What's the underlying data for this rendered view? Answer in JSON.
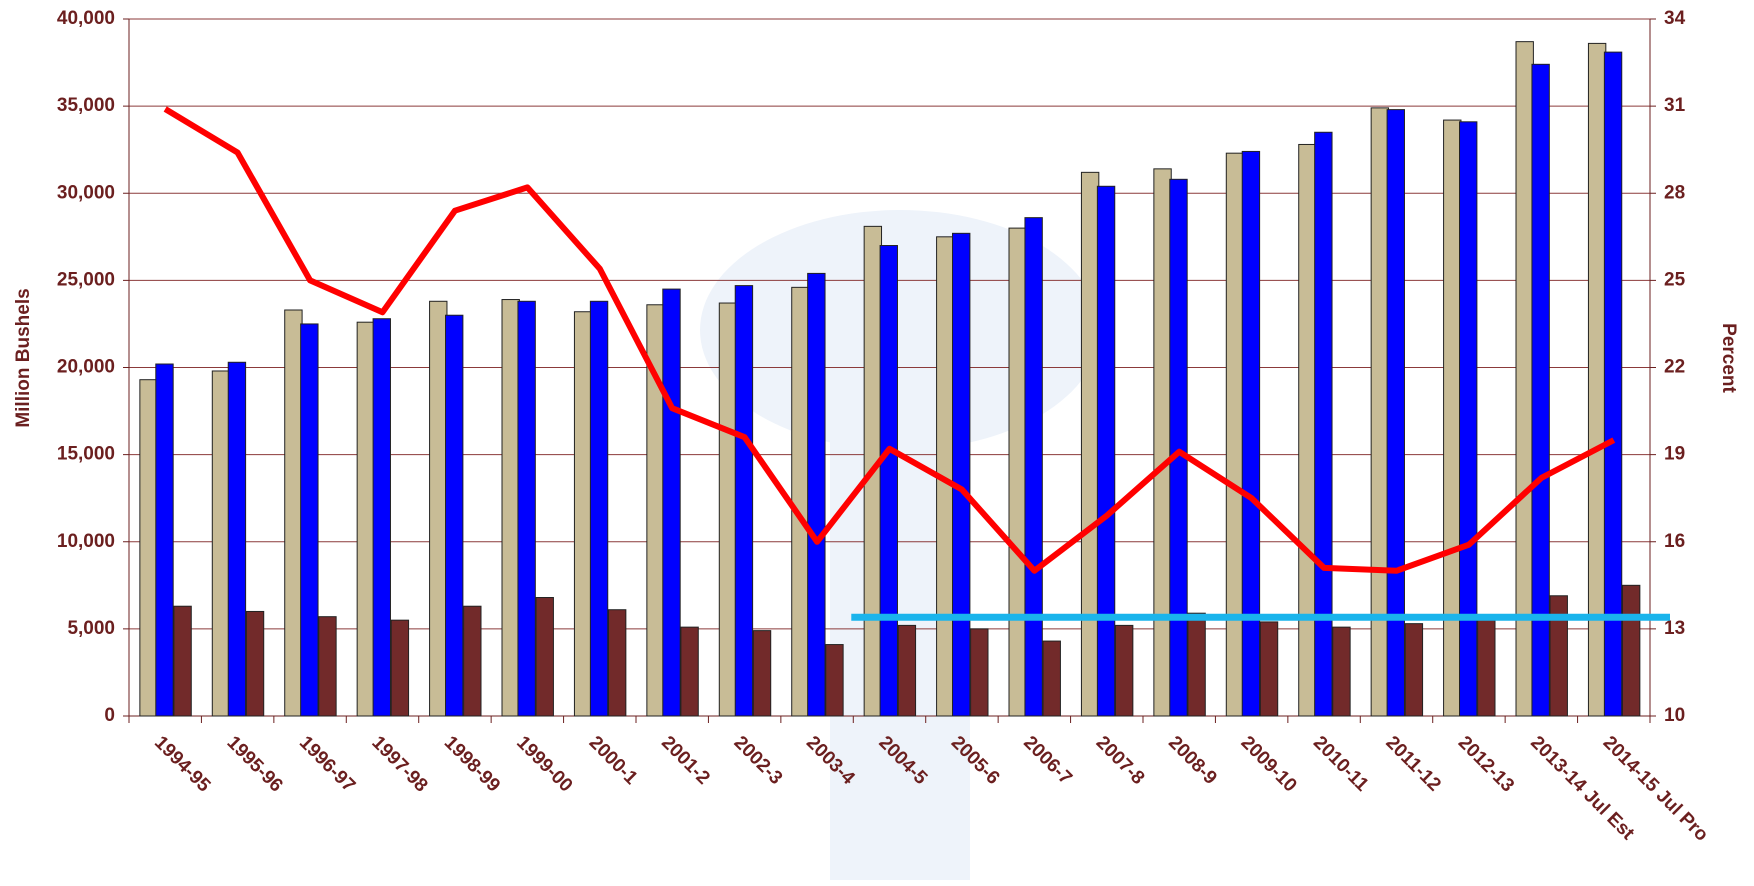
{
  "chart_data": {
    "type": "bar_line",
    "y_label": "Million Bushels",
    "y2_label": "Percent",
    "categories": [
      "1994-95",
      "1995-96",
      "1996-97",
      "1997-98",
      "1998-99",
      "1999-00",
      "2000-1",
      "2001-2",
      "2002-3",
      "2003-4",
      "2004-5",
      "2005-6",
      "2006-7",
      "2007-8",
      "2008-9",
      "2009-10",
      "2010-11",
      "2011-12",
      "2012-13",
      "2013-14 Jul Est",
      "2014-15 Jul Pro"
    ],
    "series": [
      {
        "type": "bar",
        "color": "#c8bc96",
        "values": [
          19300,
          19800,
          23300,
          22600,
          23800,
          23900,
          23200,
          23600,
          23700,
          24600,
          28100,
          27500,
          28000,
          31200,
          31400,
          32300,
          32800,
          34900,
          34200,
          38700,
          38600
        ]
      },
      {
        "type": "bar",
        "color": "#0000ff",
        "values": [
          20200,
          20300,
          22500,
          22800,
          23000,
          23800,
          23800,
          24500,
          24700,
          25400,
          27000,
          27700,
          28600,
          30400,
          30800,
          32400,
          33500,
          34800,
          34100,
          37400,
          38100
        ]
      },
      {
        "type": "bar",
        "color": "#722a2a",
        "values": [
          6300,
          6000,
          5700,
          5500,
          6300,
          6800,
          6100,
          5100,
          4900,
          4100,
          5200,
          5000,
          4300,
          5200,
          5900,
          5400,
          5100,
          5300,
          5600,
          6900,
          7500
        ]
      },
      {
        "type": "line",
        "axis": "y2",
        "color": "#ff0000",
        "values": [
          30.9,
          29.4,
          25.0,
          23.9,
          27.4,
          28.2,
          25.4,
          20.6,
          19.6,
          16.0,
          19.2,
          17.8,
          15.0,
          16.9,
          19.1,
          17.5,
          15.1,
          15.0,
          15.9,
          18.2,
          19.5
        ]
      }
    ],
    "hline": {
      "value": 13.4,
      "axis": "y2",
      "from": "2004-5",
      "color": "#1ab4ec"
    },
    "ylim": [
      0,
      40000
    ],
    "yticks": [
      0,
      {
        "value": 5000,
        "label": "5,000"
      },
      {
        "value": 10000,
        "label": "10,000"
      },
      {
        "value": 15000,
        "label": "15,000"
      },
      {
        "value": 20000,
        "label": "20,000"
      },
      {
        "value": 25000,
        "label": "25,000"
      },
      {
        "value": 30000,
        "label": "30,000"
      },
      {
        "value": 35000,
        "label": "35,000"
      },
      {
        "value": 40000,
        "label": "40,000"
      }
    ],
    "y2lim": [
      10,
      34
    ],
    "y2ticks": [
      10,
      13,
      16,
      19,
      22,
      25,
      28,
      31,
      34
    ],
    "grid": true
  }
}
